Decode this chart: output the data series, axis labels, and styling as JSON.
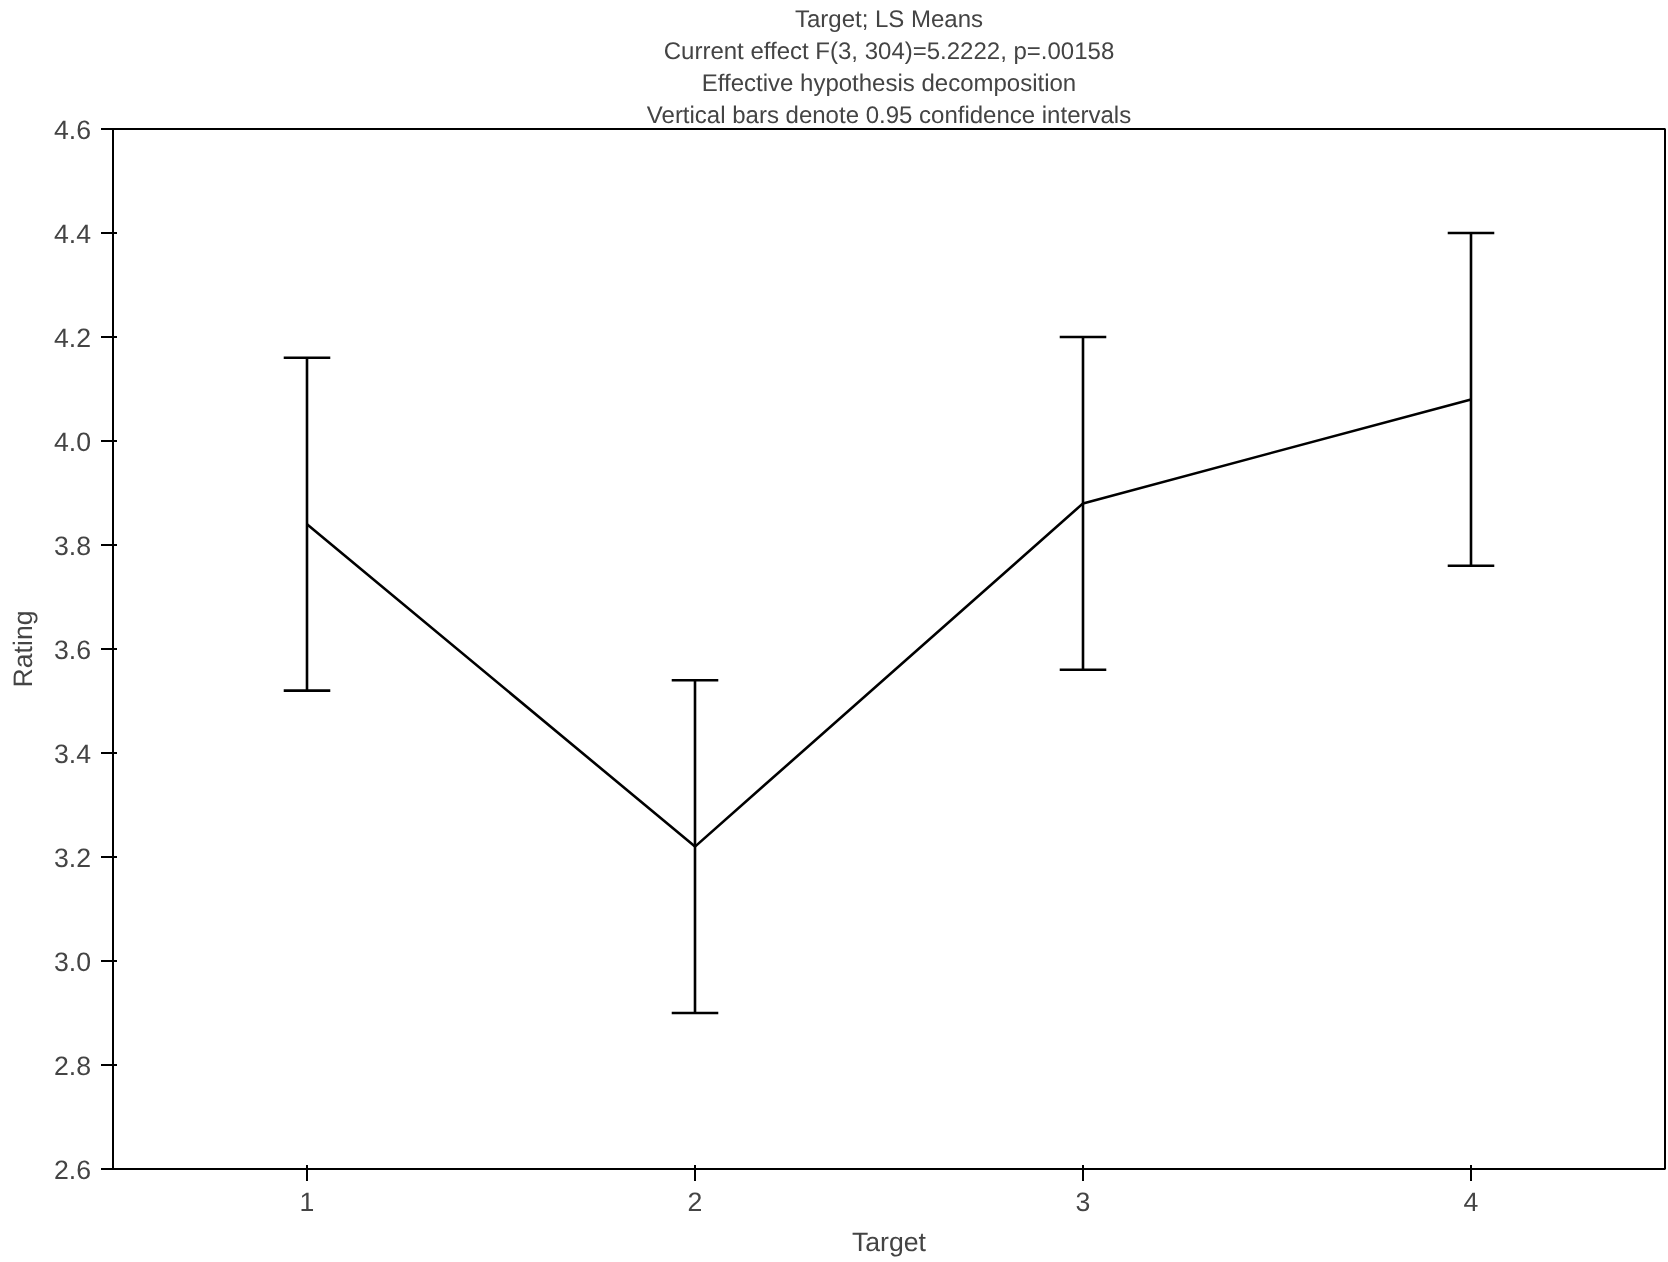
{
  "chart_data": {
    "type": "line",
    "title": "Target; LS Means",
    "subtitle": "Current effect F(3, 304)=5.2222, p=.00158",
    "annotations": [
      "Effective hypothesis decomposition",
      "Vertical bars denote 0.95 confidence intervals"
    ],
    "xlabel": "Target",
    "ylabel": "Rating",
    "categories": [
      "1",
      "2",
      "3",
      "4"
    ],
    "series": [
      {
        "color": "#000000",
        "values": [
          3.84,
          3.22,
          3.88,
          4.08
        ],
        "errors": [
          [
            3.52,
            4.16
          ],
          [
            2.9,
            3.54
          ],
          [
            3.56,
            4.2
          ],
          [
            3.76,
            4.4
          ]
        ]
      }
    ],
    "ylim": [
      2.6,
      4.6
    ],
    "yticks": [
      2.6,
      2.8,
      {
        "value": 3,
        "label": "3.0"
      },
      3.2,
      3.4,
      3.6,
      3.8,
      {
        "value": 4,
        "label": "4.0"
      },
      4.2,
      4.4,
      4.6
    ],
    "grid": false,
    "marker": "none",
    "line_style": "solid"
  }
}
